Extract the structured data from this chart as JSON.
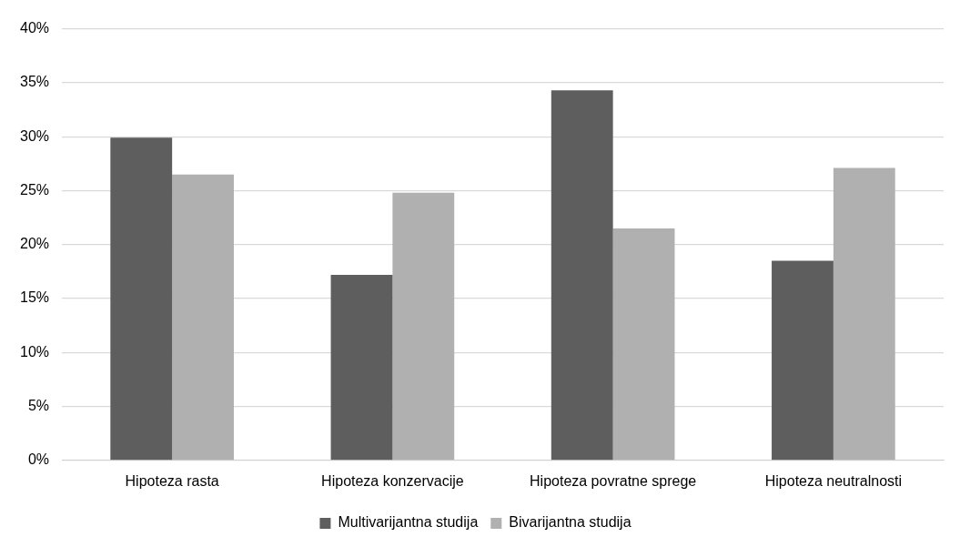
{
  "chart_data": {
    "type": "bar",
    "categories": [
      "Hipoteza rasta",
      "Hipoteza konzervacije",
      "Hipoteza povratne sprege",
      "Hipoteza neutralnosti"
    ],
    "series": [
      {
        "name": "Multivarijantna studija",
        "color": "#5e5e5e",
        "values": [
          29.9,
          17.2,
          34.3,
          18.5
        ]
      },
      {
        "name": "Bivarijantna studija",
        "color": "#b0b0b0",
        "values": [
          26.5,
          24.8,
          21.5,
          27.1
        ]
      }
    ],
    "ylim": [
      0,
      40
    ],
    "yticks": [
      {
        "value": 0,
        "label": "0%"
      },
      {
        "value": 5,
        "label": "5%"
      },
      {
        "value": 10,
        "label": "10%"
      },
      {
        "value": 15,
        "label": "15%"
      },
      {
        "value": 20,
        "label": "20%"
      },
      {
        "value": 25,
        "label": "25%"
      },
      {
        "value": 30,
        "label": "30%"
      },
      {
        "value": 35,
        "label": "35%"
      },
      {
        "value": 40,
        "label": "40%"
      }
    ],
    "grid": "y",
    "legend": "bottom"
  }
}
